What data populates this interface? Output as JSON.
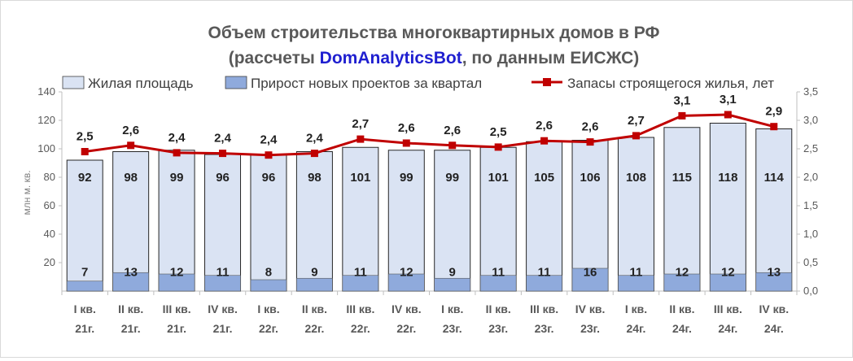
{
  "chart_data": {
    "type": "bar",
    "title_line1": "Объем строительства многоквартирных домов в РФ",
    "title_line2_prefix": "(рассчеты ",
    "title_line2_brand": "DomAnalyticsBot",
    "title_line2_suffix": ", по данным ЕИСЖС)",
    "ylabel": "млн м. кв.",
    "ylim": [
      0,
      140
    ],
    "yticks": [
      20,
      40,
      60,
      80,
      100,
      120,
      140
    ],
    "y2lim": [
      0,
      3.5
    ],
    "y2ticks": [
      "0,0",
      "0,5",
      "1,0",
      "1,5",
      "2,0",
      "2,5",
      "3,0",
      "3,5"
    ],
    "grid": false,
    "legend_position": "top",
    "categories": [
      [
        "I кв.",
        "21г."
      ],
      [
        "II кв.",
        "21г."
      ],
      [
        "III кв.",
        "21г."
      ],
      [
        "IV кв.",
        "21г."
      ],
      [
        "I кв.",
        "22г."
      ],
      [
        "II кв.",
        "22г."
      ],
      [
        "III кв.",
        "22г."
      ],
      [
        "IV кв.",
        "22г."
      ],
      [
        "I кв.",
        "23г."
      ],
      [
        "II кв.",
        "23г."
      ],
      [
        "III кв.",
        "23г."
      ],
      [
        "IV кв.",
        "23г."
      ],
      [
        "I кв.",
        "24г."
      ],
      [
        "II кв.",
        "24г."
      ],
      [
        "III кв.",
        "24г."
      ],
      [
        "IV кв.",
        "24г."
      ]
    ],
    "series": [
      {
        "name": "Жилая площадь",
        "kind": "bar",
        "color": "#dae3f3",
        "values": [
          92,
          98,
          99,
          96,
          96,
          98,
          101,
          99,
          99,
          101,
          105,
          106,
          108,
          115,
          118,
          114
        ]
      },
      {
        "name": "Прирост новых проектов за квартал",
        "kind": "bar",
        "color": "#8faadc",
        "values": [
          7,
          13,
          12,
          11,
          8,
          9,
          11,
          12,
          9,
          11,
          11,
          16,
          11,
          12,
          12,
          13
        ]
      },
      {
        "name": "Запасы строящегося жилья, лет",
        "kind": "line",
        "axis": "secondary",
        "color": "#c00000",
        "values": [
          2.45,
          2.56,
          2.43,
          2.42,
          2.39,
          2.42,
          2.67,
          2.6,
          2.56,
          2.53,
          2.64,
          2.62,
          2.73,
          3.08,
          3.1,
          2.89
        ],
        "labels": [
          "2,5",
          "2,6",
          "2,4",
          "2,4",
          "2,4",
          "2,4",
          "2,7",
          "2,6",
          "2,6",
          "2,5",
          "2,6",
          "2,6",
          "2,7",
          "3,1",
          "3,1",
          "2,9"
        ]
      }
    ]
  }
}
